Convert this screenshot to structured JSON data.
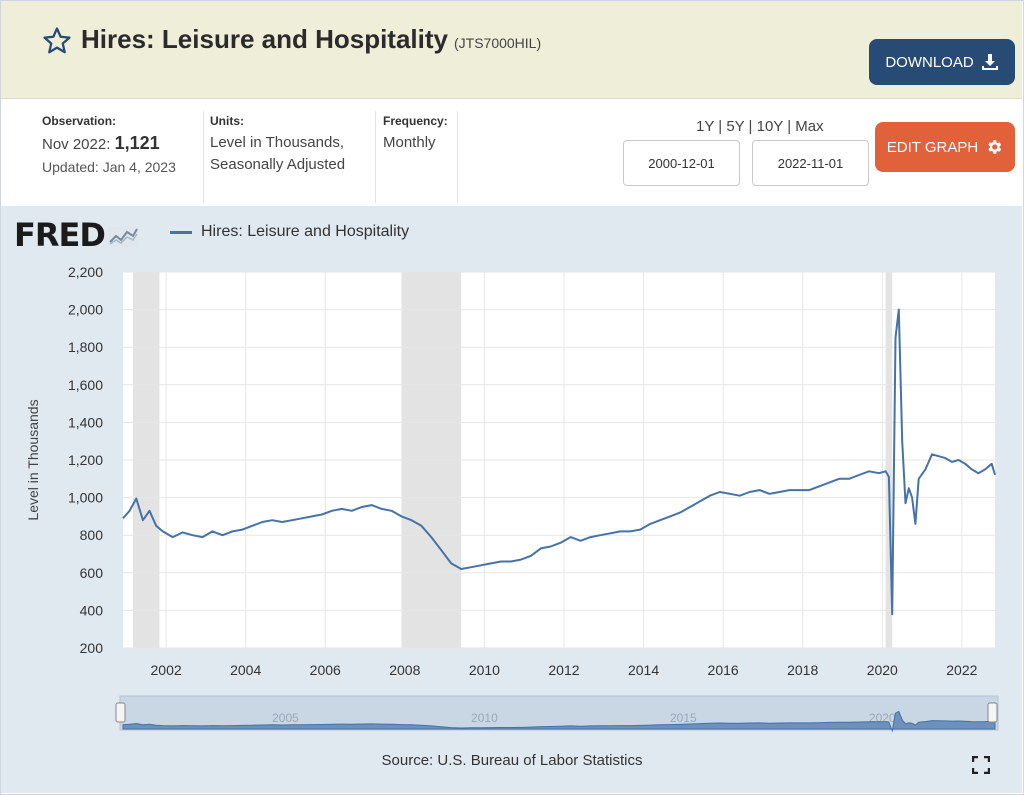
{
  "header": {
    "title": "Hires: Leisure and Hospitality",
    "series_code": "(JTS7000HIL)",
    "download_label": "DOWNLOAD"
  },
  "info": {
    "observation_label": "Observation:",
    "observation_date": "Nov 2022:",
    "observation_value": "1,121",
    "updated": "Updated: Jan 4, 2023",
    "units_label": "Units:",
    "units_line1": "Level in Thousands,",
    "units_line2": "Seasonally Adjusted",
    "frequency_label": "Frequency:",
    "frequency_value": "Monthly"
  },
  "range": {
    "links": [
      "1Y",
      "5Y",
      "10Y",
      "Max"
    ],
    "start_date": "2000-12-01",
    "end_date": "2022-11-01"
  },
  "edit_label": "EDIT GRAPH",
  "brand": "FRED",
  "source": "Source: U.S. Bureau of Labor Statistics",
  "colors": {
    "series": "#4572a7",
    "recession": "#e3e3e3",
    "download_bg": "#274b74",
    "edit_bg": "#e0613a",
    "header_bg": "#eeeed9",
    "graph_bg": "#e1e9f0"
  },
  "chart_data": {
    "type": "line",
    "title": "",
    "xlabel": "",
    "ylabel": "Level in Thousands",
    "ylim": [
      200,
      2200
    ],
    "xlim": [
      "2000-12-01",
      "2022-11-01"
    ],
    "yticks": [
      200,
      400,
      600,
      800,
      1000,
      1200,
      1400,
      1600,
      1800,
      2000,
      2200
    ],
    "xticks": [
      "2002",
      "2004",
      "2006",
      "2008",
      "2010",
      "2012",
      "2014",
      "2016",
      "2018",
      "2020",
      "2022"
    ],
    "grid": true,
    "legend_position": "top-left",
    "recessions": [
      [
        "2001-03-01",
        "2001-11-01"
      ],
      [
        "2007-12-01",
        "2009-06-01"
      ],
      [
        "2020-02-01",
        "2020-04-01"
      ]
    ],
    "navigator_labels": [
      "2005",
      "2010",
      "2015",
      "2020"
    ],
    "series": [
      {
        "name": "Hires: Leisure and Hospitality",
        "x": [
          "2000-12-01",
          "2001-02-01",
          "2001-04-01",
          "2001-06-01",
          "2001-08-01",
          "2001-10-01",
          "2001-12-01",
          "2002-03-01",
          "2002-06-01",
          "2002-09-01",
          "2002-12-01",
          "2003-03-01",
          "2003-06-01",
          "2003-09-01",
          "2003-12-01",
          "2004-03-01",
          "2004-06-01",
          "2004-09-01",
          "2004-12-01",
          "2005-03-01",
          "2005-06-01",
          "2005-09-01",
          "2005-12-01",
          "2006-03-01",
          "2006-06-01",
          "2006-09-01",
          "2006-12-01",
          "2007-03-01",
          "2007-06-01",
          "2007-09-01",
          "2007-12-01",
          "2008-03-01",
          "2008-06-01",
          "2008-09-01",
          "2008-12-01",
          "2009-03-01",
          "2009-06-01",
          "2009-09-01",
          "2009-12-01",
          "2010-03-01",
          "2010-06-01",
          "2010-09-01",
          "2010-12-01",
          "2011-03-01",
          "2011-06-01",
          "2011-09-01",
          "2011-12-01",
          "2012-03-01",
          "2012-06-01",
          "2012-09-01",
          "2012-12-01",
          "2013-03-01",
          "2013-06-01",
          "2013-09-01",
          "2013-12-01",
          "2014-03-01",
          "2014-06-01",
          "2014-09-01",
          "2014-12-01",
          "2015-03-01",
          "2015-06-01",
          "2015-09-01",
          "2015-12-01",
          "2016-03-01",
          "2016-06-01",
          "2016-09-01",
          "2016-12-01",
          "2017-03-01",
          "2017-06-01",
          "2017-09-01",
          "2017-12-01",
          "2018-03-01",
          "2018-06-01",
          "2018-09-01",
          "2018-12-01",
          "2019-03-01",
          "2019-06-01",
          "2019-09-01",
          "2019-12-01",
          "2020-02-01",
          "2020-03-01",
          "2020-04-01",
          "2020-05-01",
          "2020-06-01",
          "2020-07-01",
          "2020-08-01",
          "2020-09-01",
          "2020-10-01",
          "2020-11-01",
          "2020-12-01",
          "2021-02-01",
          "2021-04-01",
          "2021-06-01",
          "2021-08-01",
          "2021-10-01",
          "2021-12-01",
          "2022-02-01",
          "2022-04-01",
          "2022-06-01",
          "2022-08-01",
          "2022-10-01",
          "2022-11-01"
        ],
        "values": [
          890,
          930,
          995,
          880,
          930,
          850,
          820,
          790,
          815,
          800,
          790,
          820,
          800,
          820,
          830,
          850,
          870,
          880,
          870,
          880,
          890,
          900,
          910,
          930,
          940,
          930,
          950,
          960,
          940,
          930,
          900,
          880,
          850,
          790,
          720,
          650,
          620,
          630,
          640,
          650,
          660,
          660,
          670,
          690,
          730,
          740,
          760,
          790,
          770,
          790,
          800,
          810,
          820,
          820,
          830,
          860,
          880,
          900,
          920,
          950,
          980,
          1010,
          1030,
          1020,
          1010,
          1030,
          1040,
          1020,
          1030,
          1040,
          1040,
          1040,
          1060,
          1080,
          1100,
          1100,
          1120,
          1140,
          1130,
          1140,
          1110,
          380,
          1850,
          2000,
          1300,
          970,
          1050,
          1000,
          860,
          1100,
          1150,
          1230,
          1220,
          1210,
          1190,
          1200,
          1180,
          1150,
          1130,
          1150,
          1180,
          1121
        ]
      }
    ]
  }
}
